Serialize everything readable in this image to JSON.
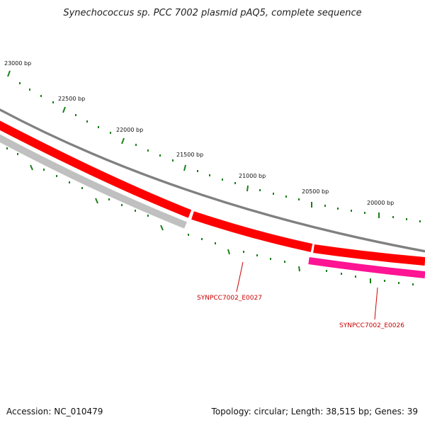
{
  "title": "Synechococcus sp. PCC 7002 plasmid pAQ5, complete sequence",
  "ticks": [
    {
      "label": "23000 bp"
    },
    {
      "label": "22500 bp"
    },
    {
      "label": "22000 bp"
    },
    {
      "label": "21500 bp"
    },
    {
      "label": "21000 bp"
    },
    {
      "label": "20500 bp"
    },
    {
      "label": "20000 bp"
    }
  ],
  "genes": [
    {
      "locus_tag": "SYNPCC7002_E0027",
      "color": "#ff0000"
    },
    {
      "locus_tag": "SYNPCC7002_E0026",
      "color": "#ff1493"
    }
  ],
  "colors": {
    "backbone": "#808080",
    "forward_gene": "#ff0000",
    "reverse_gene_grey": "#c0c0c0",
    "reverse_gene_pink": "#ff1493",
    "tick": "#1a7f1a",
    "label": "#cc0000"
  },
  "footer": {
    "accession": "Accession: NC_010479",
    "summary": "Topology: circular; Length: 38,515 bp; Genes: 39"
  }
}
